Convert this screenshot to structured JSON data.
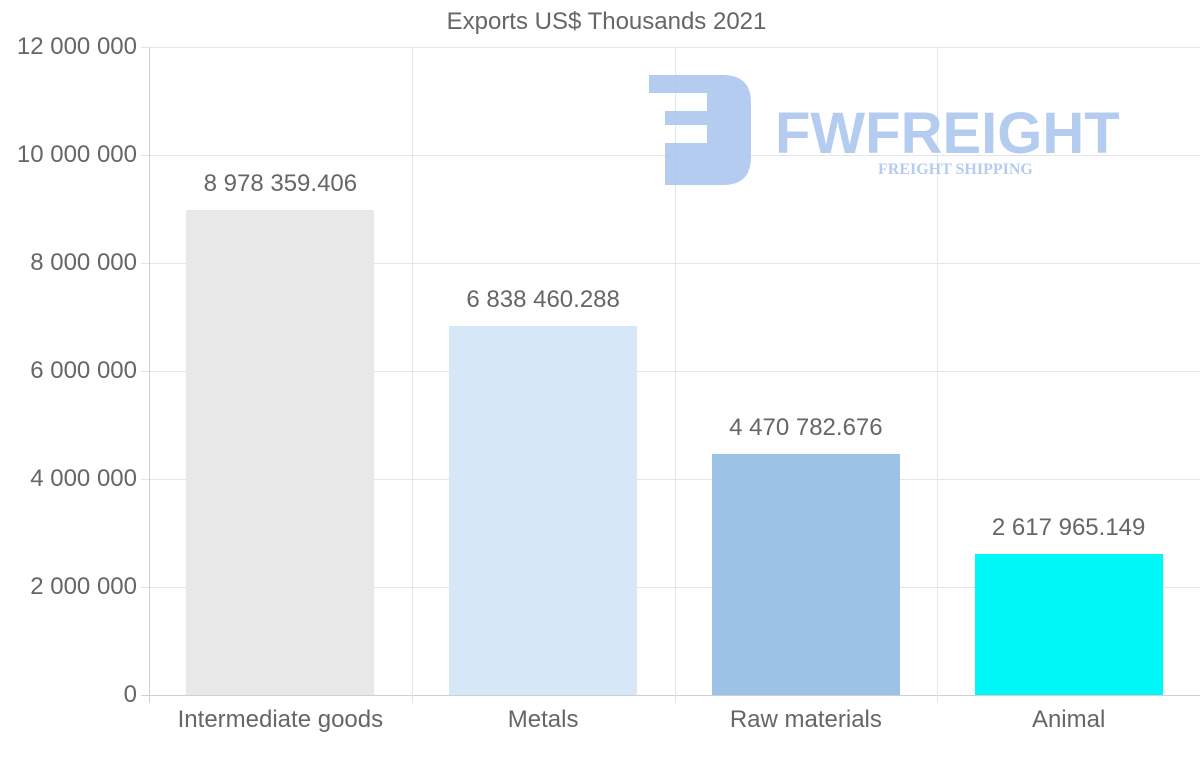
{
  "chart_data": {
    "type": "bar",
    "title": "Exports US$ Thousands 2021",
    "categories": [
      "Intermediate goods",
      "Metals",
      "Raw materials",
      "Animal"
    ],
    "values": [
      8978359.406,
      6838460.288,
      4470782.676,
      2617965.149
    ],
    "value_labels": [
      "8 978 359.406",
      "6 838 460.288",
      "4 470 782.676",
      "2 617 965.149"
    ],
    "colors": [
      "#e8e8e8",
      "#d6e8f8",
      "#9cc3e6",
      "#00f8f8"
    ],
    "xlabel": "",
    "ylabel": "",
    "ylim": [
      0,
      12000000
    ],
    "yticks": [
      0,
      2000000,
      4000000,
      6000000,
      8000000,
      10000000,
      12000000
    ],
    "ytick_labels": [
      "0",
      "2 000 000",
      "4 000 000",
      "6 000 000",
      "8 000 000",
      "10 000 000",
      "12 000 000"
    ],
    "grid": true,
    "legend": null
  },
  "watermark": {
    "brand": "FWFREIGHT",
    "tagline": "FREIGHT SHIPPING",
    "color": "#a8c4f0"
  }
}
